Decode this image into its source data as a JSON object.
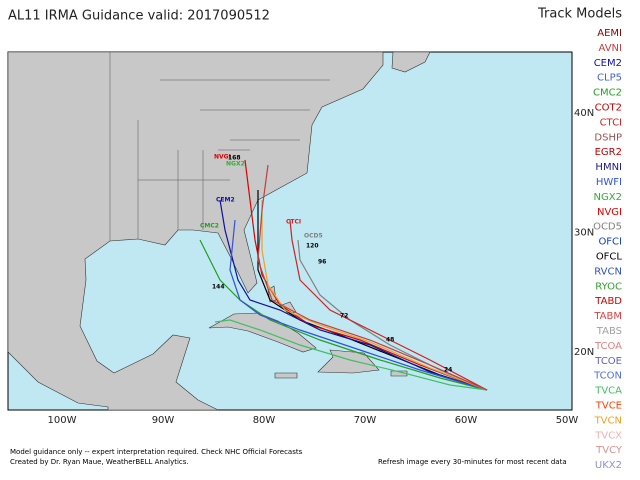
{
  "title": "AL11  IRMA Guidance  valid: 2017090512",
  "legend_title": "Track Models",
  "models": [
    {
      "name": "AEMI",
      "color": "#8b0000"
    },
    {
      "name": "AVNI",
      "color": "#c04040"
    },
    {
      "name": "CEM2",
      "color": "#1010a0"
    },
    {
      "name": "CLP5",
      "color": "#4060d0"
    },
    {
      "name": "CMC2",
      "color": "#20a020"
    },
    {
      "name": "COT2",
      "color": "#c00000"
    },
    {
      "name": "CTCI",
      "color": "#d02020"
    },
    {
      "name": "DSHP",
      "color": "#a05050"
    },
    {
      "name": "EGR2",
      "color": "#c00000"
    },
    {
      "name": "HMNI",
      "color": "#1a1a80"
    },
    {
      "name": "HWFI",
      "color": "#3050e0"
    },
    {
      "name": "NGX2",
      "color": "#30b030"
    },
    {
      "name": "NVGI",
      "color": "#e00000"
    },
    {
      "name": "OCD5",
      "color": "#808080"
    },
    {
      "name": "OFCI",
      "color": "#1040c0"
    },
    {
      "name": "OFCL",
      "color": "#000000"
    },
    {
      "name": "RVCN",
      "color": "#3050c0"
    },
    {
      "name": "RYOC",
      "color": "#30a030"
    },
    {
      "name": "TABD",
      "color": "#d00000"
    },
    {
      "name": "TABM",
      "color": "#e04040"
    },
    {
      "name": "TABS",
      "color": "#a0a0a0"
    },
    {
      "name": "TCOA",
      "color": "#e08080"
    },
    {
      "name": "TCOE",
      "color": "#6060c0"
    },
    {
      "name": "TCON",
      "color": "#5070e0"
    },
    {
      "name": "TVCA",
      "color": "#40c060"
    },
    {
      "name": "TVCE",
      "color": "#ff4000"
    },
    {
      "name": "TVCN",
      "color": "#f0a020"
    },
    {
      "name": "TVCX",
      "color": "#f0b0b0"
    },
    {
      "name": "TVCY",
      "color": "#e09090"
    },
    {
      "name": "UKX2",
      "color": "#9090d0"
    }
  ],
  "lon_labels": [
    "100W",
    "90W",
    "80W",
    "70W",
    "60W",
    "50W"
  ],
  "lat_labels": [
    "40N",
    "30N",
    "20N"
  ],
  "map_labels": [
    "CTCI",
    "NVGI",
    "CEM2",
    "NGX2",
    "OCD5",
    "CMC2",
    "168",
    "144",
    "120",
    "96",
    "72",
    "48",
    "24"
  ],
  "footer": [
    "Model guidance only -- expert interpretation required.   Check NHC Official Forecasts",
    "Created by Dr. Ryan Maue, WeatherBELL Analytics.",
    "Refresh image every 30-minutes for most recent data"
  ]
}
